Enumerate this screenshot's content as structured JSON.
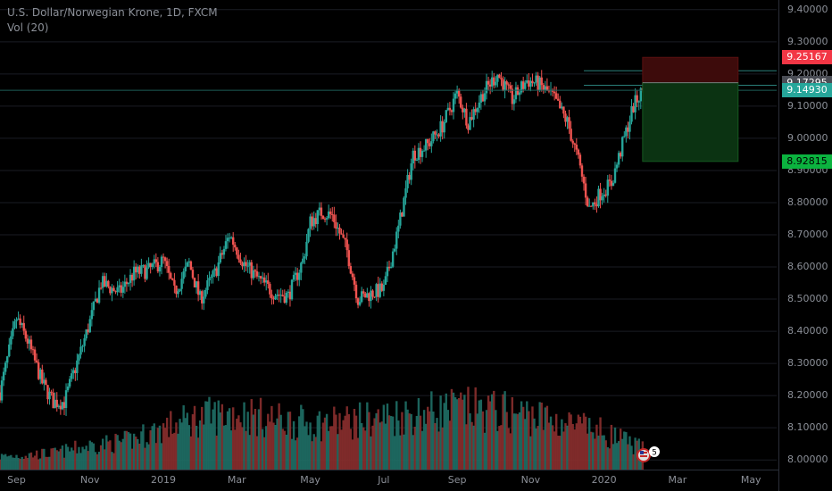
{
  "legend": {
    "title": "U.S. Dollar/Norwegian Krone, 1D, FXCM",
    "indicator": "Vol (20)"
  },
  "price_tags": [
    {
      "label": "9.25167",
      "value": 9.25167,
      "color": "#f23645",
      "text_color": "#ffffff"
    },
    {
      "label": "9.17295",
      "value": 9.17295,
      "color": "#4a4d55",
      "text_color": "#ffffff"
    },
    {
      "label": "9.14930",
      "value": 9.1493,
      "color": "#26a69a",
      "text_color": "#ffffff"
    },
    {
      "label": "8.92815",
      "value": 8.92815,
      "color": "#0bb33f",
      "text_color": "#000000"
    }
  ],
  "badge": {
    "label": "5"
  },
  "colors": {
    "up": "#26a69a",
    "down": "#ef5350",
    "vol_up": "#1f6f66",
    "vol_down": "#8a2f2e",
    "background": "#000000",
    "grid": "#1a1d24"
  },
  "chart_data": {
    "type": "candlestick",
    "title": "U.S. Dollar/Norwegian Krone, 1D, FXCM",
    "y_ticks": [
      "9.40000",
      "9.30000",
      "9.20000",
      "9.10000",
      "9.00000",
      "8.90000",
      "8.80000",
      "8.70000",
      "8.60000",
      "8.50000",
      "8.40000",
      "8.30000",
      "8.20000",
      "8.10000",
      "8.00000"
    ],
    "y_tick_values": [
      9.4,
      9.3,
      9.2,
      9.1,
      9.0,
      8.9,
      8.8,
      8.7,
      8.6,
      8.5,
      8.4,
      8.3,
      8.2,
      8.1,
      8.0
    ],
    "ylim": [
      7.97,
      9.43
    ],
    "x_ticks": [
      "Sep",
      "Nov",
      "2019",
      "Mar",
      "May",
      "Jul",
      "Sep",
      "Nov",
      "2020",
      "Mar",
      "May"
    ],
    "x_tick_months": [
      0,
      2,
      4,
      6,
      8,
      10,
      12,
      14,
      16,
      18,
      20
    ],
    "x_range_months": [
      -0.45,
      20.7
    ],
    "series_path_months": [
      -0.45,
      0,
      0.3,
      0.7,
      1,
      1.3,
      1.7,
      2,
      2.3,
      2.8,
      3.2,
      3.6,
      4,
      4.3,
      4.7,
      5,
      5.4,
      5.8,
      6.2,
      6.6,
      7,
      7.4,
      7.8,
      8,
      8.3,
      8.6,
      9,
      9.3,
      9.7,
      10,
      10.4,
      10.8,
      11.2,
      11.6,
      12,
      12.3,
      12.7,
      13.1,
      13.5,
      13.9,
      14.2,
      14.6,
      15,
      15.3,
      15.6,
      15.9,
      16.2,
      16.5,
      16.8,
      17.05,
      17.1
    ],
    "series_path_close": [
      8.21,
      8.44,
      8.37,
      8.24,
      8.18,
      8.18,
      8.32,
      8.43,
      8.55,
      8.52,
      8.58,
      8.59,
      8.62,
      8.52,
      8.61,
      8.5,
      8.58,
      8.7,
      8.61,
      8.56,
      8.52,
      8.51,
      8.62,
      8.74,
      8.77,
      8.76,
      8.65,
      8.5,
      8.52,
      8.53,
      8.72,
      8.95,
      8.98,
      9.04,
      9.14,
      9.05,
      9.14,
      9.2,
      9.12,
      9.18,
      9.17,
      9.13,
      9.05,
      8.93,
      8.78,
      8.83,
      8.86,
      8.98,
      9.1,
      9.15,
      9.15
    ],
    "volume_ylim": [
      0,
      1
    ],
    "volume_path_months": [
      -0.45,
      1,
      2,
      3,
      4,
      5,
      6,
      7,
      8,
      9,
      10,
      11,
      12,
      13,
      14,
      15,
      16,
      17,
      17.1
    ],
    "volume_path": [
      0.12,
      0.15,
      0.22,
      0.26,
      0.38,
      0.48,
      0.52,
      0.46,
      0.42,
      0.44,
      0.48,
      0.52,
      0.56,
      0.54,
      0.5,
      0.42,
      0.34,
      0.2,
      0.18
    ],
    "position": {
      "start_month": 17.05,
      "end_month": 19.65,
      "stop": 9.25167,
      "entry": 9.17295,
      "target": 8.92815,
      "current": 9.1493
    },
    "horizontal_lines": [
      9.21,
      9.165
    ]
  }
}
